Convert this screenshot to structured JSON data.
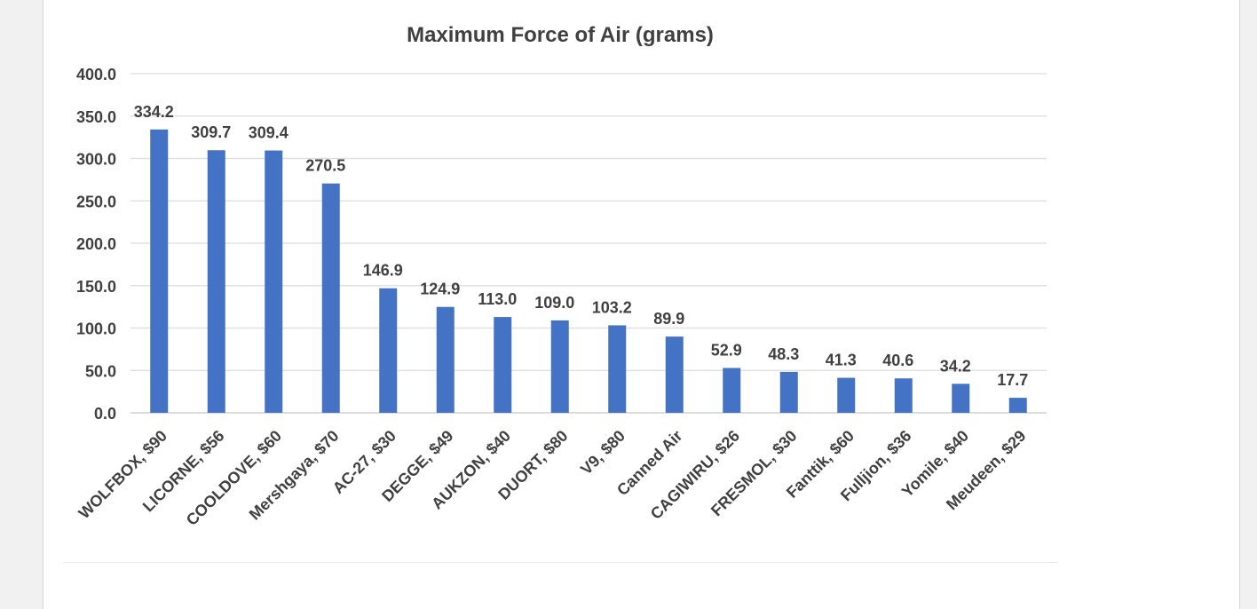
{
  "chart_data": {
    "type": "bar",
    "title": "Maximum Force of Air (grams)",
    "xlabel": "",
    "ylabel": "",
    "ylim": [
      0,
      400
    ],
    "yticks": [
      "0.0",
      "50.0",
      "100.0",
      "150.0",
      "200.0",
      "250.0",
      "300.0",
      "350.0",
      "400.0"
    ],
    "grid": true,
    "legend": "none",
    "bar_color": "#4472c4",
    "categories": [
      "WOLFBOX, $90",
      "LICORNE, $56",
      "COOLDOVE, $60",
      "Mershgaya, $70",
      "AC-27, $30",
      "DEGGE, $49",
      "AUKZON, $40",
      "DUORT, $80",
      "V9, $80",
      "Canned Air",
      "CAGIWIRU, $26",
      "FRESMOL, $30",
      "Fanttik, $60",
      "Fulljion, $36",
      "Yomile, $40",
      "Meudeen, $29"
    ],
    "values": [
      334.2,
      309.7,
      309.4,
      270.5,
      146.9,
      124.9,
      113.0,
      109.0,
      103.2,
      89.9,
      52.9,
      48.3,
      41.3,
      40.6,
      34.2,
      17.7
    ],
    "data_labels": [
      "334.2",
      "309.7",
      "309.4",
      "270.5",
      "146.9",
      "124.9",
      "113.0",
      "109.0",
      "103.2",
      "89.9",
      "52.9",
      "48.3",
      "41.3",
      "40.6",
      "34.2",
      "17.7"
    ]
  }
}
